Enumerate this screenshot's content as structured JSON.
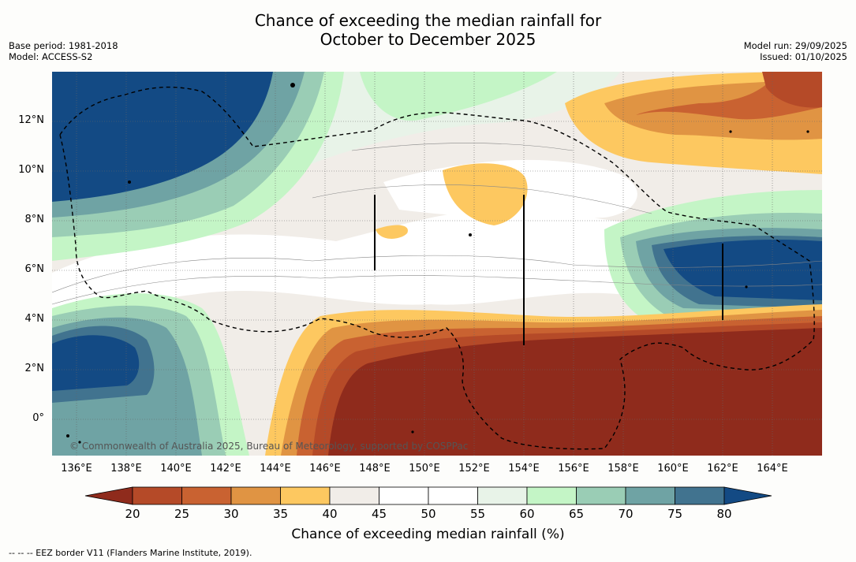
{
  "title": {
    "line1": "Chance of exceeding the median rainfall for",
    "line2": "October to December 2025"
  },
  "meta": {
    "base_period": "Base period: 1981-2018",
    "model": "Model: ACCESS-S2",
    "model_run": "Model run: 29/09/2025",
    "issued": "Issued: 01/10/2025"
  },
  "axes": {
    "y_labels": [
      "12°N",
      "10°N",
      "8°N",
      "6°N",
      "4°N",
      "2°N",
      "0°"
    ],
    "x_labels": [
      "136°E",
      "138°E",
      "140°E",
      "142°E",
      "144°E",
      "146°E",
      "148°E",
      "150°E",
      "152°E",
      "154°E",
      "156°E",
      "158°E",
      "160°E",
      "162°E",
      "164°E"
    ]
  },
  "map": {
    "copyright": "© Commonwealth of Australia 2025, Bureau of Meteorology, supported by COSPPac"
  },
  "colorbar": {
    "ticks": [
      "20",
      "25",
      "30",
      "35",
      "40",
      "45",
      "50",
      "55",
      "60",
      "65",
      "70",
      "75",
      "80"
    ],
    "colors": [
      "#8f2b1c",
      "#b54a28",
      "#c96231",
      "#e09443",
      "#fdc860",
      "#f1ede8",
      "#ffffff",
      "#ffffff",
      "#e8f3e8",
      "#c4f5c6",
      "#9acdb5",
      "#6fa3a4",
      "#41738f",
      "#134a84"
    ],
    "label": "Chance of exceeding median rainfall (%)"
  },
  "legend": {
    "eez": "--  --  -- EEZ border V11 (Flanders Marine Institute, 2019)."
  }
}
